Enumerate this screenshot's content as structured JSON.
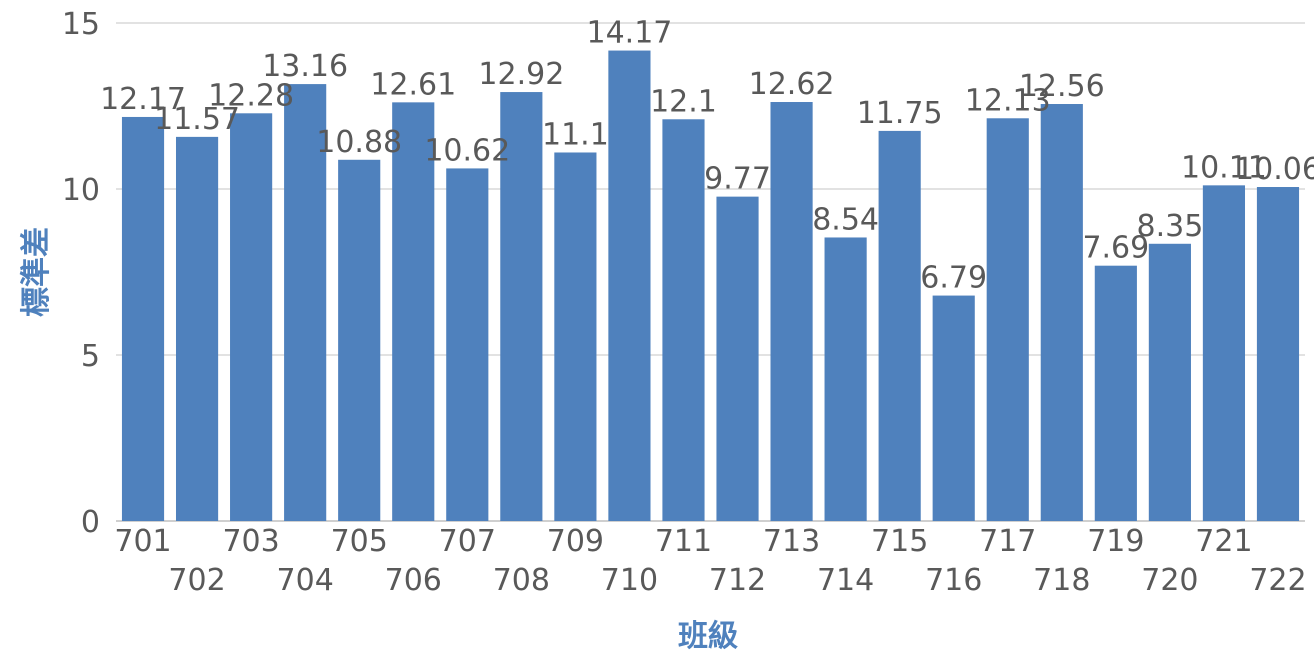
{
  "chart_data": {
    "type": "bar",
    "categories": [
      "701",
      "702",
      "703",
      "704",
      "705",
      "706",
      "707",
      "708",
      "709",
      "710",
      "711",
      "712",
      "713",
      "714",
      "715",
      "716",
      "717",
      "718",
      "719",
      "720",
      "721",
      "722"
    ],
    "values": [
      12.17,
      11.57,
      12.28,
      13.16,
      10.88,
      12.61,
      10.62,
      12.92,
      11.1,
      14.17,
      12.1,
      9.77,
      12.62,
      8.54,
      11.75,
      6.79,
      12.13,
      12.56,
      7.69,
      8.35,
      10.11,
      10.06
    ],
    "data_labels": [
      "12.17",
      "11.57",
      "12.28",
      "13.16",
      "10.88",
      "12.61",
      "10.62",
      "12.92",
      "11.1",
      "14.17",
      "12.1",
      "9.77",
      "12.62",
      "8.54",
      "11.75",
      "6.79",
      "12.13",
      "12.56",
      "7.69",
      "8.35",
      "10.11",
      "10.06"
    ],
    "xlabel": "班級",
    "ylabel": "標準差",
    "ylim": [
      0,
      15
    ],
    "yticks": [
      0,
      5,
      10,
      15
    ],
    "grid": true,
    "legend": "none",
    "colors": {
      "bar": "#4f81bd",
      "axis_title": "#4f81bd",
      "text": "#595959",
      "grid": "#d9d9d9"
    }
  }
}
